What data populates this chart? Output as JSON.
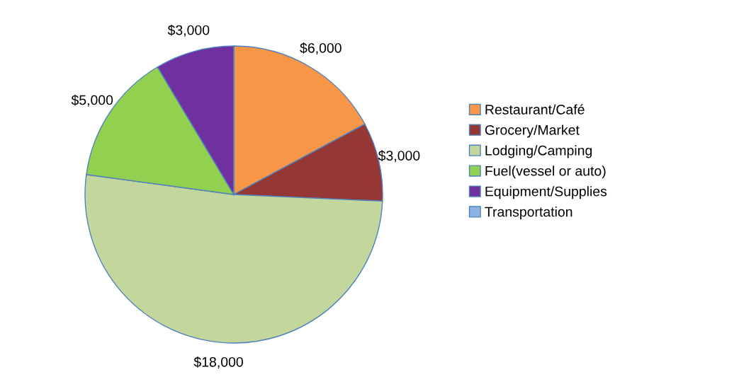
{
  "chart_data": {
    "type": "pie",
    "categories": [
      "Restaurant/Café",
      "Grocery/Market",
      "Lodging/Camping",
      "Fuel(vessel or auto)",
      "Equipment/Supplies",
      "Transportation"
    ],
    "values": [
      6000,
      3000,
      18000,
      5000,
      3000,
      0
    ],
    "value_labels": [
      "$6,000",
      "$3,000",
      "$18,000",
      "$5,000",
      "$3,000",
      null
    ],
    "colors": [
      "#f79646",
      "#953735",
      "#c3d69b",
      "#92d050",
      "#7030a0",
      "#8eb4e3"
    ],
    "legend": "right"
  }
}
